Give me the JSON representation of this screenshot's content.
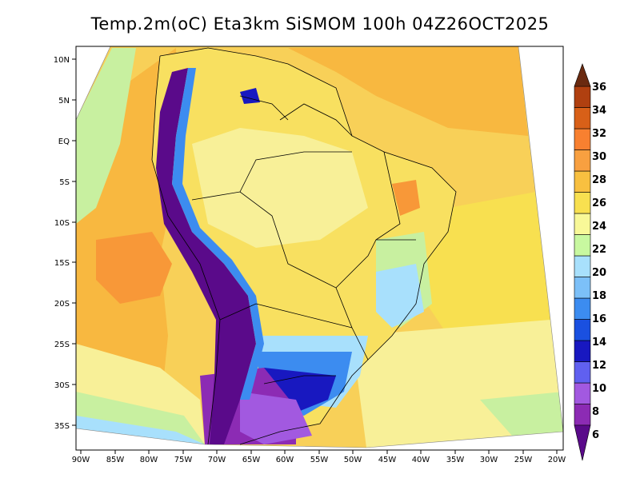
{
  "title": "Temp.2m(oC) Eta3km SiSMOM 100h 04Z26OCT2025",
  "axes": {
    "lat_labels": [
      "10N",
      "5N",
      "EQ",
      "5S",
      "10S",
      "15S",
      "20S",
      "25S",
      "30S",
      "35S"
    ],
    "lon_labels": [
      "90W",
      "85W",
      "80W",
      "75W",
      "70W",
      "65W",
      "60W",
      "55W",
      "50W",
      "45W",
      "40W",
      "35W",
      "30W",
      "25W",
      "20W"
    ]
  },
  "colorbar": {
    "labels": [
      "6",
      "8",
      "10",
      "12",
      "14",
      "16",
      "18",
      "20",
      "22",
      "24",
      "26",
      "28",
      "30",
      "32",
      "34",
      "36"
    ],
    "colors": [
      "#5a0a8a",
      "#8c2bb4",
      "#a259e0",
      "#6060f0",
      "#1818c0",
      "#1a50e0",
      "#3c8cf0",
      "#7cc0f8",
      "#a8e0fc",
      "#c8f8a0",
      "#f8f898",
      "#f8e050",
      "#f8c040",
      "#f8a040",
      "#f88030",
      "#d86018",
      "#b04010",
      "#6a2a10"
    ]
  },
  "map": {
    "variable": "Temperature at 2m (°C)",
    "region": "South America"
  }
}
